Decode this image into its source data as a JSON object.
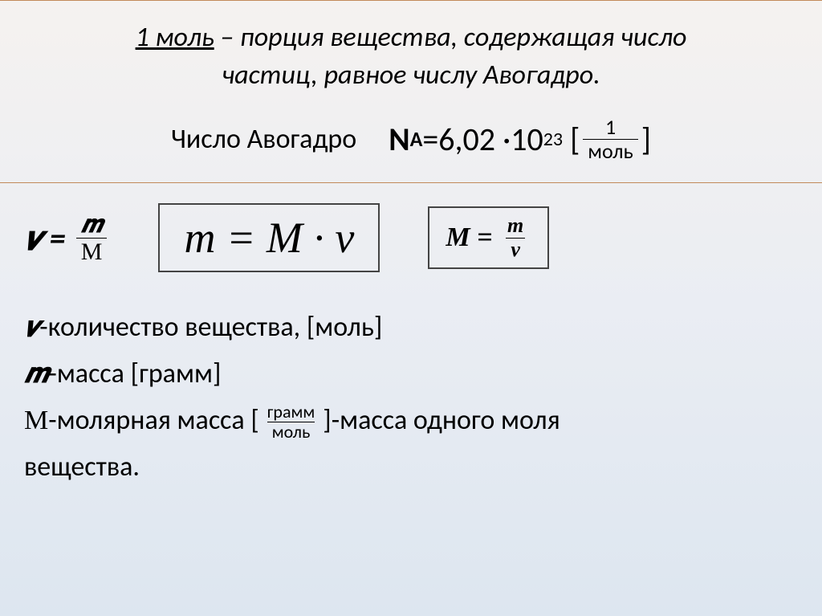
{
  "definition": {
    "term": "1 моль",
    "line1_rest": " – порция  вещества, содержащая число",
    "line2": "частиц, равное числу Авогадро."
  },
  "avogadro": {
    "label": "Число Авогадро",
    "symbol_N": "N",
    "symbol_A": "A",
    "eq": "=6,02 ·10",
    "exp": "23",
    "unit_num": "1",
    "unit_den": "моль"
  },
  "formulas": {
    "f1_lhs": "𝝂 =",
    "f1_num": "𝒎",
    "f1_den": "М",
    "f2": "m = M · ν",
    "f3_lhs": "M =",
    "f3_num": "m",
    "f3_den": "ν"
  },
  "legend": {
    "nu_sym": "𝝂",
    "nu_text": "-количество вещества, [моль]",
    "m_sym": "𝒎",
    "m_text": "-масса [грамм]",
    "M_sym": "М",
    "M_text_pre": "-молярная масса [",
    "M_frac_num": "грамм",
    "M_frac_den": "моль",
    "M_text_post": "]-масса одного моля",
    "M_text_line2": "вещества."
  },
  "colors": {
    "divider": "#c28a5a",
    "bg_top": "#f5f2f0",
    "bg_bottom": "#dde6f0",
    "text": "#000000",
    "box_border": "#444444"
  }
}
